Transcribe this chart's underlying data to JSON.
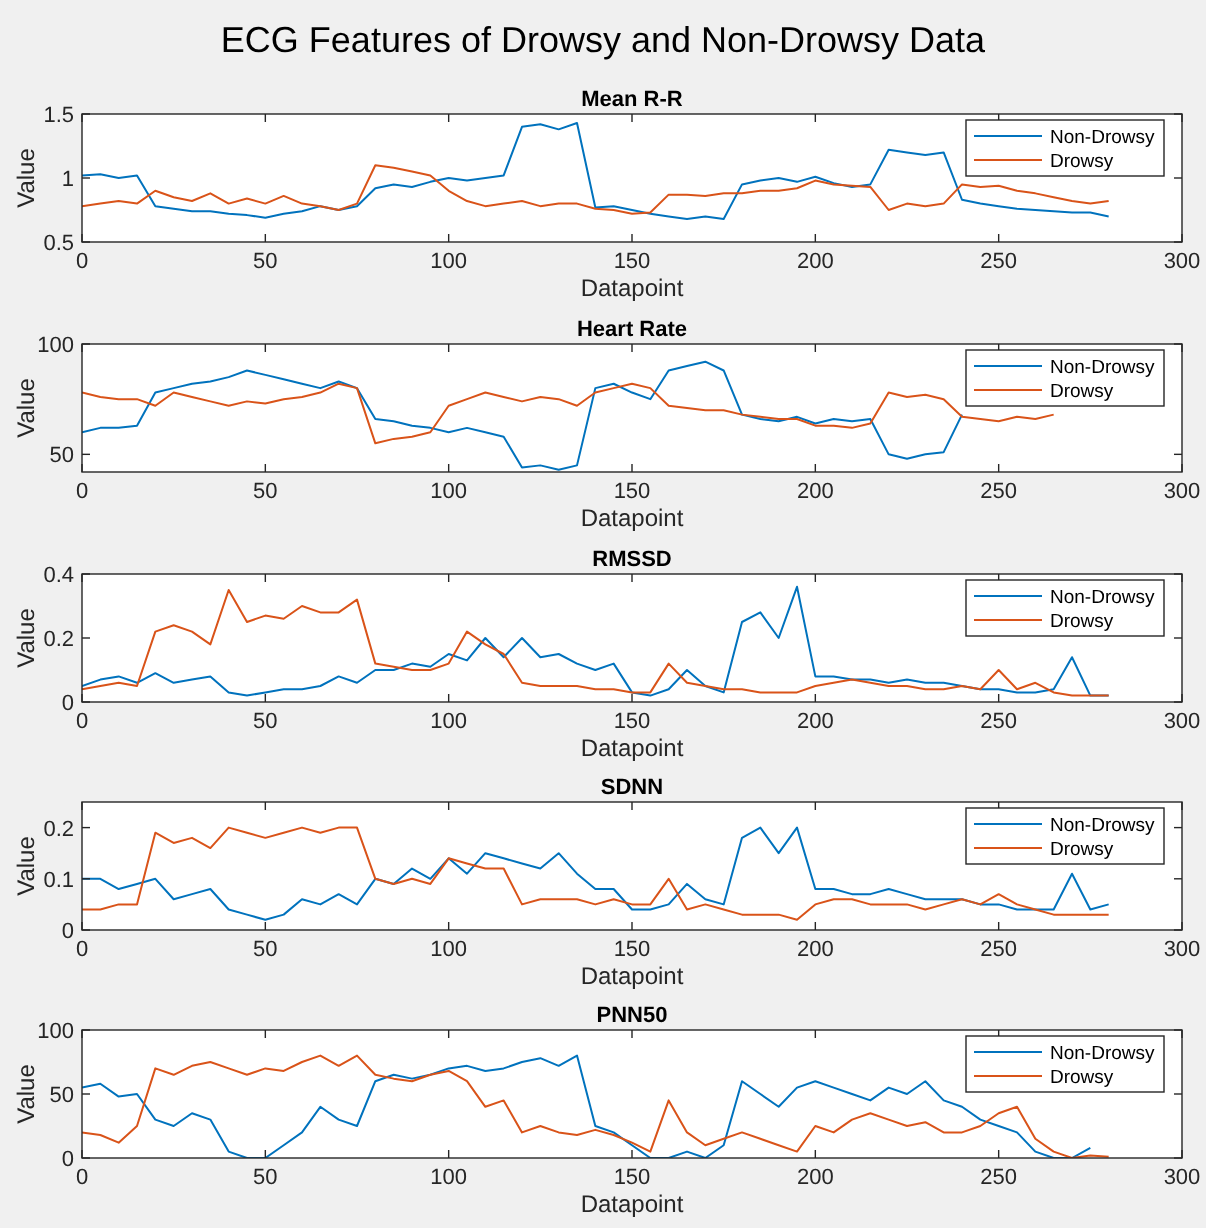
{
  "chart_data": [
    {
      "type": "line",
      "title": "ECG Features of Drowsy and Non-Drowsy Data",
      "subtitle": "Mean R-R",
      "xlabel": "Datapoint",
      "ylabel": "Value",
      "legend": "top right",
      "xlim": [
        0,
        300
      ],
      "xticks": [
        0,
        50,
        100,
        150,
        200,
        250,
        300
      ],
      "ylim": [
        0.5,
        1.5
      ],
      "yticks": [
        0.5,
        1,
        1.5
      ],
      "x": [
        0,
        5,
        10,
        15,
        20,
        25,
        30,
        35,
        40,
        45,
        50,
        55,
        60,
        65,
        70,
        75,
        80,
        85,
        90,
        95,
        100,
        105,
        110,
        115,
        120,
        125,
        130,
        135,
        140,
        145,
        150,
        155,
        160,
        165,
        170,
        175,
        180,
        185,
        190,
        195,
        200,
        205,
        210,
        215,
        220,
        225,
        230,
        235,
        240,
        245,
        250,
        255,
        260,
        265,
        270,
        275,
        280
      ],
      "series": [
        {
          "name": "Non-Drowsy",
          "color": "#0072bd",
          "values": [
            1.02,
            1.03,
            1.0,
            1.02,
            0.78,
            0.76,
            0.74,
            0.74,
            0.72,
            0.71,
            0.69,
            0.72,
            0.74,
            0.78,
            0.75,
            0.78,
            0.92,
            0.95,
            0.93,
            0.97,
            1.0,
            0.98,
            1.0,
            1.02,
            1.4,
            1.42,
            1.38,
            1.43,
            0.77,
            0.78,
            0.75,
            0.72,
            0.7,
            0.68,
            0.7,
            0.68,
            0.95,
            0.98,
            1.0,
            0.97,
            1.01,
            0.96,
            0.93,
            0.95,
            1.22,
            1.2,
            1.18,
            1.2,
            0.83,
            0.8,
            0.78,
            0.76,
            0.75,
            0.74,
            0.73,
            0.73,
            0.7
          ]
        },
        {
          "name": "Drowsy",
          "color": "#d95319",
          "values": [
            0.78,
            0.8,
            0.82,
            0.8,
            0.9,
            0.85,
            0.82,
            0.88,
            0.8,
            0.84,
            0.8,
            0.86,
            0.8,
            0.78,
            0.75,
            0.8,
            1.1,
            1.08,
            1.05,
            1.02,
            0.9,
            0.82,
            0.78,
            0.8,
            0.82,
            0.78,
            0.8,
            0.8,
            0.76,
            0.75,
            0.72,
            0.73,
            0.87,
            0.87,
            0.86,
            0.88,
            0.88,
            0.9,
            0.9,
            0.92,
            0.98,
            0.95,
            0.94,
            0.93,
            0.75,
            0.8,
            0.78,
            0.8,
            0.95,
            0.93,
            0.94,
            0.9,
            0.88,
            0.85,
            0.82,
            0.8,
            0.82
          ]
        }
      ]
    },
    {
      "type": "line",
      "title": "Heart Rate",
      "xlabel": "Datapoint",
      "ylabel": "Value",
      "legend": "top right",
      "xlim": [
        0,
        300
      ],
      "xticks": [
        0,
        50,
        100,
        150,
        200,
        250,
        300
      ],
      "ylim": [
        42,
        100
      ],
      "yticks": [
        50,
        100
      ],
      "x": [
        0,
        5,
        10,
        15,
        20,
        25,
        30,
        35,
        40,
        45,
        50,
        55,
        60,
        65,
        70,
        75,
        80,
        85,
        90,
        95,
        100,
        105,
        110,
        115,
        120,
        125,
        130,
        135,
        140,
        145,
        150,
        155,
        160,
        165,
        170,
        175,
        180,
        185,
        190,
        195,
        200,
        205,
        210,
        215,
        220,
        225,
        230,
        235,
        240,
        245,
        250,
        255,
        260,
        265
      ],
      "series": [
        {
          "name": "Non-Drowsy",
          "color": "#0072bd",
          "values": [
            60,
            62,
            62,
            63,
            78,
            80,
            82,
            83,
            85,
            88,
            86,
            84,
            82,
            80,
            83,
            80,
            66,
            65,
            63,
            62,
            60,
            62,
            60,
            58,
            44,
            45,
            43,
            45,
            80,
            82,
            78,
            75,
            88,
            90,
            92,
            88,
            68,
            66,
            65,
            67,
            64,
            66,
            65,
            66,
            50,
            48,
            50,
            51,
            68,
            null,
            null,
            null,
            null,
            null
          ]
        },
        {
          "name": "Drowsy",
          "color": "#d95319",
          "values": [
            78,
            76,
            75,
            75,
            72,
            78,
            76,
            74,
            72,
            74,
            73,
            75,
            76,
            78,
            82,
            80,
            55,
            57,
            58,
            60,
            72,
            75,
            78,
            76,
            74,
            76,
            75,
            72,
            78,
            80,
            82,
            80,
            72,
            71,
            70,
            70,
            68,
            67,
            66,
            66,
            63,
            63,
            62,
            64,
            78,
            76,
            77,
            75,
            67,
            66,
            65,
            67,
            66,
            68
          ]
        }
      ]
    },
    {
      "type": "line",
      "title": "RMSSD",
      "xlabel": "Datapoint",
      "ylabel": "Value",
      "legend": "top right",
      "xlim": [
        0,
        300
      ],
      "xticks": [
        0,
        50,
        100,
        150,
        200,
        250,
        300
      ],
      "ylim": [
        0,
        0.4
      ],
      "yticks": [
        0,
        0.2,
        0.4
      ],
      "x": [
        0,
        5,
        10,
        15,
        20,
        25,
        30,
        35,
        40,
        45,
        50,
        55,
        60,
        65,
        70,
        75,
        80,
        85,
        90,
        95,
        100,
        105,
        110,
        115,
        120,
        125,
        130,
        135,
        140,
        145,
        150,
        155,
        160,
        165,
        170,
        175,
        180,
        185,
        190,
        195,
        200,
        205,
        210,
        215,
        220,
        225,
        230,
        235,
        240,
        245,
        250,
        255,
        260,
        265,
        270,
        275,
        280
      ],
      "series": [
        {
          "name": "Non-Drowsy",
          "color": "#0072bd",
          "values": [
            0.05,
            0.07,
            0.08,
            0.06,
            0.09,
            0.06,
            0.07,
            0.08,
            0.03,
            0.02,
            0.03,
            0.04,
            0.04,
            0.05,
            0.08,
            0.06,
            0.1,
            0.1,
            0.12,
            0.11,
            0.15,
            0.13,
            0.2,
            0.14,
            0.2,
            0.14,
            0.15,
            0.12,
            0.1,
            0.12,
            0.03,
            0.02,
            0.04,
            0.1,
            0.05,
            0.03,
            0.25,
            0.28,
            0.2,
            0.36,
            0.08,
            0.08,
            0.07,
            0.07,
            0.06,
            0.07,
            0.06,
            0.06,
            0.05,
            0.04,
            0.04,
            0.03,
            0.03,
            0.04,
            0.14,
            0.02,
            0.02
          ]
        },
        {
          "name": "Drowsy",
          "color": "#d95319",
          "values": [
            0.04,
            0.05,
            0.06,
            0.05,
            0.22,
            0.24,
            0.22,
            0.18,
            0.35,
            0.25,
            0.27,
            0.26,
            0.3,
            0.28,
            0.28,
            0.32,
            0.12,
            0.11,
            0.1,
            0.1,
            0.12,
            0.22,
            0.18,
            0.15,
            0.06,
            0.05,
            0.05,
            0.05,
            0.04,
            0.04,
            0.03,
            0.03,
            0.12,
            0.06,
            0.05,
            0.04,
            0.04,
            0.03,
            0.03,
            0.03,
            0.05,
            0.06,
            0.07,
            0.06,
            0.05,
            0.05,
            0.04,
            0.04,
            0.05,
            0.04,
            0.1,
            0.04,
            0.06,
            0.03,
            0.02,
            0.02,
            0.02
          ]
        }
      ]
    },
    {
      "type": "line",
      "title": "SDNN",
      "xlabel": "Datapoint",
      "ylabel": "Value",
      "legend": "top right",
      "xlim": [
        0,
        300
      ],
      "xticks": [
        0,
        50,
        100,
        150,
        200,
        250,
        300
      ],
      "ylim": [
        0,
        0.25
      ],
      "yticks": [
        0,
        0.1,
        0.2
      ],
      "x": [
        0,
        5,
        10,
        15,
        20,
        25,
        30,
        35,
        40,
        45,
        50,
        55,
        60,
        65,
        70,
        75,
        80,
        85,
        90,
        95,
        100,
        105,
        110,
        115,
        120,
        125,
        130,
        135,
        140,
        145,
        150,
        155,
        160,
        165,
        170,
        175,
        180,
        185,
        190,
        195,
        200,
        205,
        210,
        215,
        220,
        225,
        230,
        235,
        240,
        245,
        250,
        255,
        260,
        265,
        270,
        275,
        280
      ],
      "series": [
        {
          "name": "Non-Drowsy",
          "color": "#0072bd",
          "values": [
            0.1,
            0.1,
            0.08,
            0.09,
            0.1,
            0.06,
            0.07,
            0.08,
            0.04,
            0.03,
            0.02,
            0.03,
            0.06,
            0.05,
            0.07,
            0.05,
            0.1,
            0.09,
            0.12,
            0.1,
            0.14,
            0.11,
            0.15,
            0.14,
            0.13,
            0.12,
            0.15,
            0.11,
            0.08,
            0.08,
            0.04,
            0.04,
            0.05,
            0.09,
            0.06,
            0.05,
            0.18,
            0.2,
            0.15,
            0.2,
            0.08,
            0.08,
            0.07,
            0.07,
            0.08,
            0.07,
            0.06,
            0.06,
            0.06,
            0.05,
            0.05,
            0.04,
            0.04,
            0.04,
            0.11,
            0.04,
            0.05
          ]
        },
        {
          "name": "Drowsy",
          "color": "#d95319",
          "values": [
            0.04,
            0.04,
            0.05,
            0.05,
            0.19,
            0.17,
            0.18,
            0.16,
            0.2,
            0.19,
            0.18,
            0.19,
            0.2,
            0.19,
            0.2,
            0.2,
            0.1,
            0.09,
            0.1,
            0.09,
            0.14,
            0.13,
            0.12,
            0.12,
            0.05,
            0.06,
            0.06,
            0.06,
            0.05,
            0.06,
            0.05,
            0.05,
            0.1,
            0.04,
            0.05,
            0.04,
            0.03,
            0.03,
            0.03,
            0.02,
            0.05,
            0.06,
            0.06,
            0.05,
            0.05,
            0.05,
            0.04,
            0.05,
            0.06,
            0.05,
            0.07,
            0.05,
            0.04,
            0.03,
            0.03,
            0.03,
            0.03
          ]
        }
      ]
    },
    {
      "type": "line",
      "title": "PNN50",
      "xlabel": "Datapoint",
      "ylabel": "Value",
      "legend": "top right",
      "xlim": [
        0,
        300
      ],
      "xticks": [
        0,
        50,
        100,
        150,
        200,
        250,
        300
      ],
      "ylim": [
        0,
        100
      ],
      "yticks": [
        0,
        50,
        100
      ],
      "x": [
        0,
        5,
        10,
        15,
        20,
        25,
        30,
        35,
        40,
        45,
        50,
        55,
        60,
        65,
        70,
        75,
        80,
        85,
        90,
        95,
        100,
        105,
        110,
        115,
        120,
        125,
        130,
        135,
        140,
        145,
        150,
        155,
        160,
        165,
        170,
        175,
        180,
        185,
        190,
        195,
        200,
        205,
        210,
        215,
        220,
        225,
        230,
        235,
        240,
        245,
        250,
        255,
        260,
        265,
        270,
        275,
        280
      ],
      "series": [
        {
          "name": "Non-Drowsy",
          "color": "#0072bd",
          "values": [
            55,
            58,
            48,
            50,
            30,
            25,
            35,
            30,
            5,
            0,
            0,
            10,
            20,
            40,
            30,
            25,
            60,
            65,
            62,
            65,
            70,
            72,
            68,
            70,
            75,
            78,
            72,
            80,
            25,
            20,
            10,
            0,
            0,
            5,
            0,
            10,
            60,
            50,
            40,
            55,
            60,
            55,
            50,
            45,
            55,
            50,
            60,
            45,
            40,
            30,
            25,
            20,
            5,
            0,
            0,
            8,
            null
          ]
        },
        {
          "name": "Drowsy",
          "color": "#d95319",
          "values": [
            20,
            18,
            12,
            25,
            70,
            65,
            72,
            75,
            70,
            65,
            70,
            68,
            75,
            80,
            72,
            80,
            65,
            62,
            60,
            65,
            68,
            60,
            40,
            45,
            20,
            25,
            20,
            18,
            22,
            18,
            12,
            5,
            45,
            20,
            10,
            15,
            20,
            15,
            10,
            5,
            25,
            20,
            30,
            35,
            30,
            25,
            28,
            20,
            20,
            25,
            35,
            40,
            15,
            5,
            0,
            2,
            1
          ]
        }
      ]
    }
  ]
}
